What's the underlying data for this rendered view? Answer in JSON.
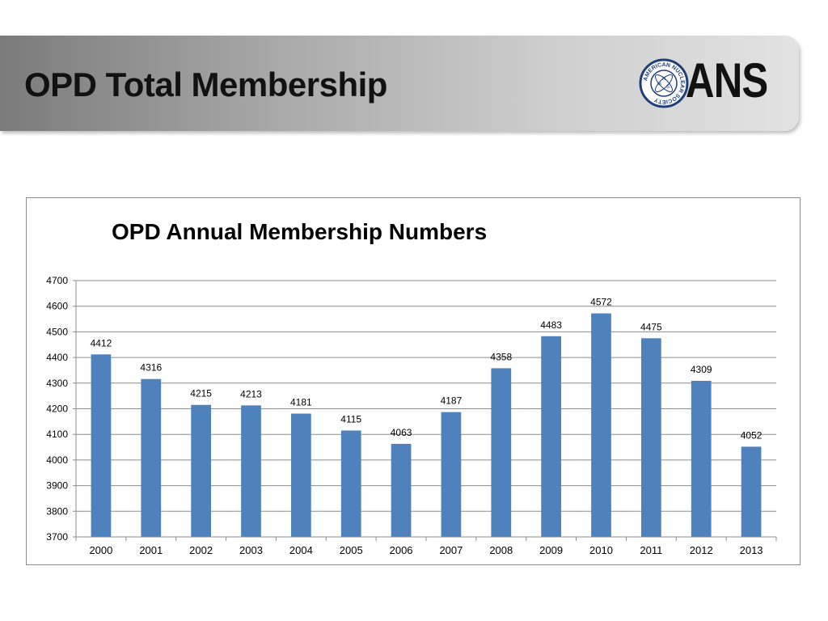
{
  "header": {
    "title": "OPD Total Membership",
    "logo": {
      "text": "ANS",
      "ring_text": "AMERICAN NUCLEAR SOCIETY",
      "emblem_letters": [
        "A",
        "N",
        "S"
      ],
      "color": "#1f3f7a"
    }
  },
  "chart_data": {
    "type": "bar",
    "title": "OPD Annual Membership Numbers",
    "categories": [
      "2000",
      "2001",
      "2002",
      "2003",
      "2004",
      "2005",
      "2006",
      "2007",
      "2008",
      "2009",
      "2010",
      "2011",
      "2012",
      "2013"
    ],
    "values": [
      4412,
      4316,
      4215,
      4213,
      4181,
      4115,
      4063,
      4187,
      4358,
      4483,
      4572,
      4475,
      4309,
      4052
    ],
    "data_labels": [
      "4412",
      "4316",
      "4215",
      "4213",
      "4181",
      "4115",
      "4063",
      "4187",
      "4358",
      "4483",
      "4572",
      "4475",
      "4309",
      "4052"
    ],
    "ylim": [
      3700,
      4700
    ],
    "yticks": [
      "3700",
      "3800",
      "3900",
      "4000",
      "4100",
      "4200",
      "4300",
      "4400",
      "4500",
      "4600",
      "4700"
    ],
    "xlabel": "",
    "ylabel": "",
    "grid": true,
    "legend": "none",
    "bar_color": "#4f81bd"
  }
}
